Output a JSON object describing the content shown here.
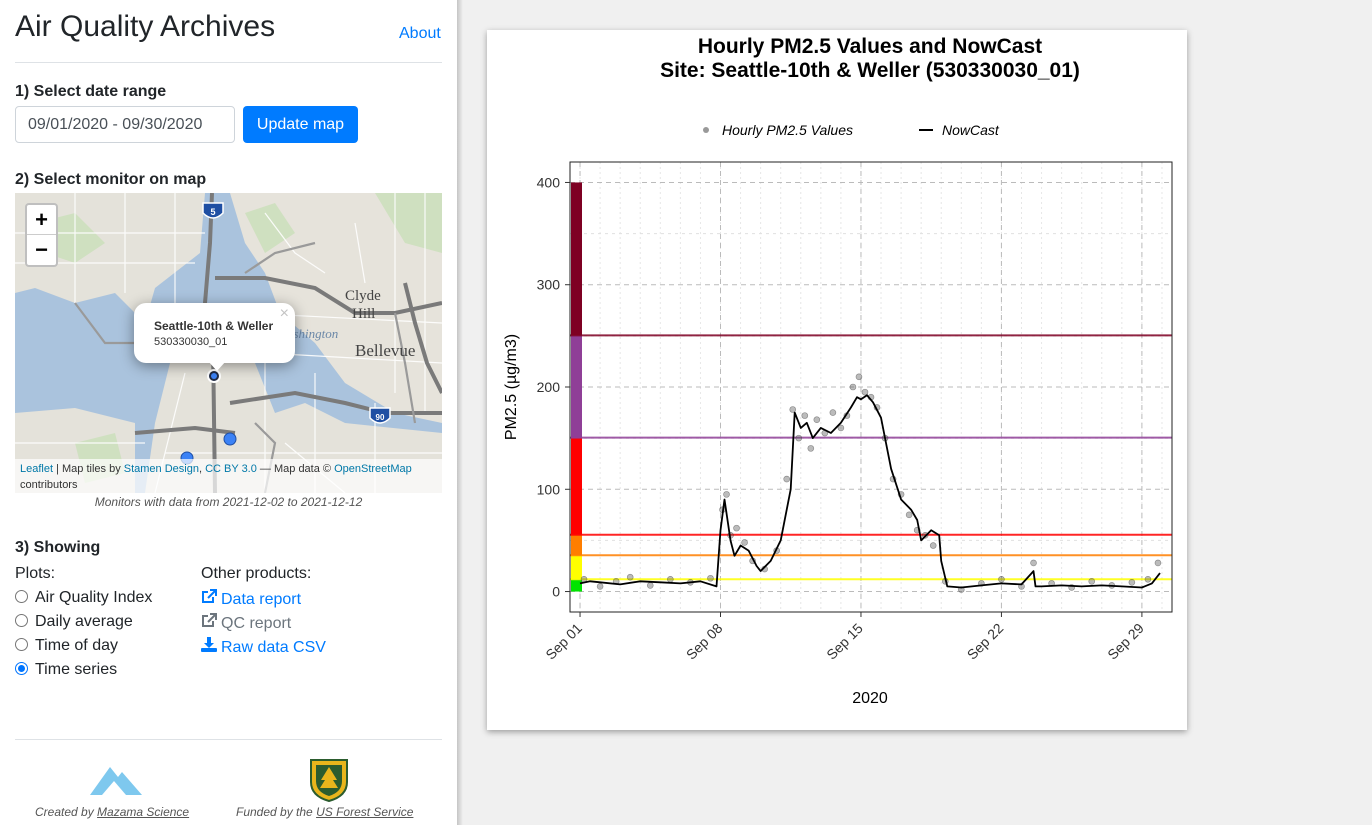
{
  "app": {
    "title": "Air Quality Archives",
    "about": "About"
  },
  "step1": {
    "heading": "1) Select date range",
    "date_value": "09/01/2020 - 09/30/2020",
    "update_button": "Update map"
  },
  "step2": {
    "heading": "2) Select monitor on map",
    "popup": {
      "title": "Seattle-10th & Weller",
      "id": "530330030_01",
      "close": "×"
    },
    "map_labels": [
      "Clyde",
      "Hill",
      "Bellevue",
      "ashington",
      "5",
      "90"
    ],
    "attribution": {
      "leaflet": "Leaflet",
      "tiles_by": " | Map tiles by ",
      "stamen": "Stamen Design",
      "comma": ", ",
      "cc": "CC BY 3.0",
      "data_by": " — Map data © ",
      "osm": "OpenStreetMap",
      "contributors": "contributors"
    },
    "note": "Monitors with data from 2021-12-02 to 2021-12-12"
  },
  "step3": {
    "heading": "3) Showing",
    "plots_label": "Plots:",
    "plots": [
      "Air Quality Index",
      "Daily average",
      "Time of day",
      "Time series"
    ],
    "selected_plot": 3,
    "other_label": "Other products:",
    "products": [
      "Data report",
      "QC report",
      "Raw data CSV"
    ]
  },
  "footer": {
    "created_by": "Created by ",
    "mazama": "Mazama Science",
    "funded_by": "Funded by the ",
    "usfs": "US Forest Service",
    "usfs_logo_text": "USFS"
  },
  "colors": {
    "primary": "#007bff",
    "good": "#00e400",
    "moderate": "#ffff00",
    "usg": "#ff7e00",
    "unhealthy": "#ff0000",
    "very_unhealthy": "#8f3f97",
    "hazardous": "#7e0023"
  },
  "chart_data": {
    "type": "scatter",
    "title": "Hourly PM2.5 Values and NowCast",
    "subtitle": "Site: Seattle-10th & Weller (530330030_01)",
    "xlabel": "2020",
    "ylabel": "PM2.5 (µg/m3)",
    "legend": [
      "Hourly PM2.5 Values",
      "NowCast"
    ],
    "legend_position": "top",
    "xlim": [
      0.5,
      30.5
    ],
    "ylim": [
      -20,
      420
    ],
    "x_ticks": [
      1,
      8,
      15,
      22,
      29
    ],
    "x_tick_labels": [
      "Sep 01",
      "Sep 08",
      "Sep 15",
      "Sep 22",
      "Sep 29"
    ],
    "y_ticks": [
      0,
      100,
      200,
      300,
      400
    ],
    "aqi_thresholds": [
      12,
      35.5,
      55.5,
      150.5,
      250.5
    ],
    "aqi_bands": [
      [
        0,
        12
      ],
      [
        12,
        35.5
      ],
      [
        35.5,
        55.5
      ],
      [
        55.5,
        150.5
      ],
      [
        150.5,
        250.5
      ],
      [
        250.5,
        400
      ]
    ],
    "series": [
      {
        "name": "NowCast",
        "x": [
          1,
          1.5,
          2,
          3,
          4,
          5,
          6,
          7,
          7.8,
          8,
          8.2,
          8.5,
          8.7,
          9,
          9.4,
          9.8,
          10,
          10.5,
          11,
          11.5,
          11.7,
          12,
          12.3,
          12.6,
          13,
          13.5,
          14,
          14.5,
          14.8,
          15,
          15.3,
          15.6,
          16,
          16.5,
          17,
          17.5,
          17.8,
          18,
          18.5,
          18.9,
          19,
          19.3,
          20,
          21,
          22,
          23,
          23.6,
          23.7,
          24,
          25,
          26,
          27,
          28,
          29,
          29.5,
          29.9
        ],
        "values": [
          8,
          10,
          9,
          7,
          10,
          9,
          8,
          10,
          5,
          60,
          90,
          50,
          35,
          45,
          40,
          25,
          20,
          30,
          50,
          100,
          175,
          160,
          165,
          150,
          160,
          155,
          165,
          180,
          190,
          188,
          192,
          185,
          170,
          120,
          90,
          80,
          70,
          50,
          60,
          55,
          30,
          5,
          4,
          6,
          8,
          7,
          20,
          5,
          5,
          6,
          5,
          6,
          5,
          4,
          8,
          18
        ]
      },
      {
        "name": "Hourly PM2.5 Values",
        "x": [
          1.2,
          2,
          2.8,
          3.5,
          4.5,
          5.5,
          6.5,
          7.5,
          8.1,
          8.3,
          8.5,
          8.8,
          9.2,
          9.6,
          10.2,
          10.8,
          11.3,
          11.6,
          11.9,
          12.2,
          12.5,
          12.8,
          13.2,
          13.6,
          14,
          14.3,
          14.6,
          14.9,
          15.2,
          15.5,
          15.8,
          16.2,
          16.6,
          17,
          17.4,
          17.8,
          18.2,
          18.6,
          19.2,
          20,
          21,
          22,
          23,
          23.6,
          24.5,
          25.5,
          26.5,
          27.5,
          28.5,
          29.3,
          29.8
        ],
        "values": [
          12,
          5,
          10,
          14,
          6,
          12,
          9,
          13,
          80,
          95,
          55,
          62,
          48,
          30,
          22,
          40,
          110,
          178,
          150,
          172,
          140,
          168,
          155,
          175,
          160,
          172,
          200,
          210,
          195,
          190,
          180,
          150,
          110,
          95,
          75,
          60,
          55,
          45,
          10,
          2,
          8,
          12,
          5,
          28,
          8,
          4,
          10,
          6,
          9,
          12,
          28
        ]
      }
    ]
  }
}
